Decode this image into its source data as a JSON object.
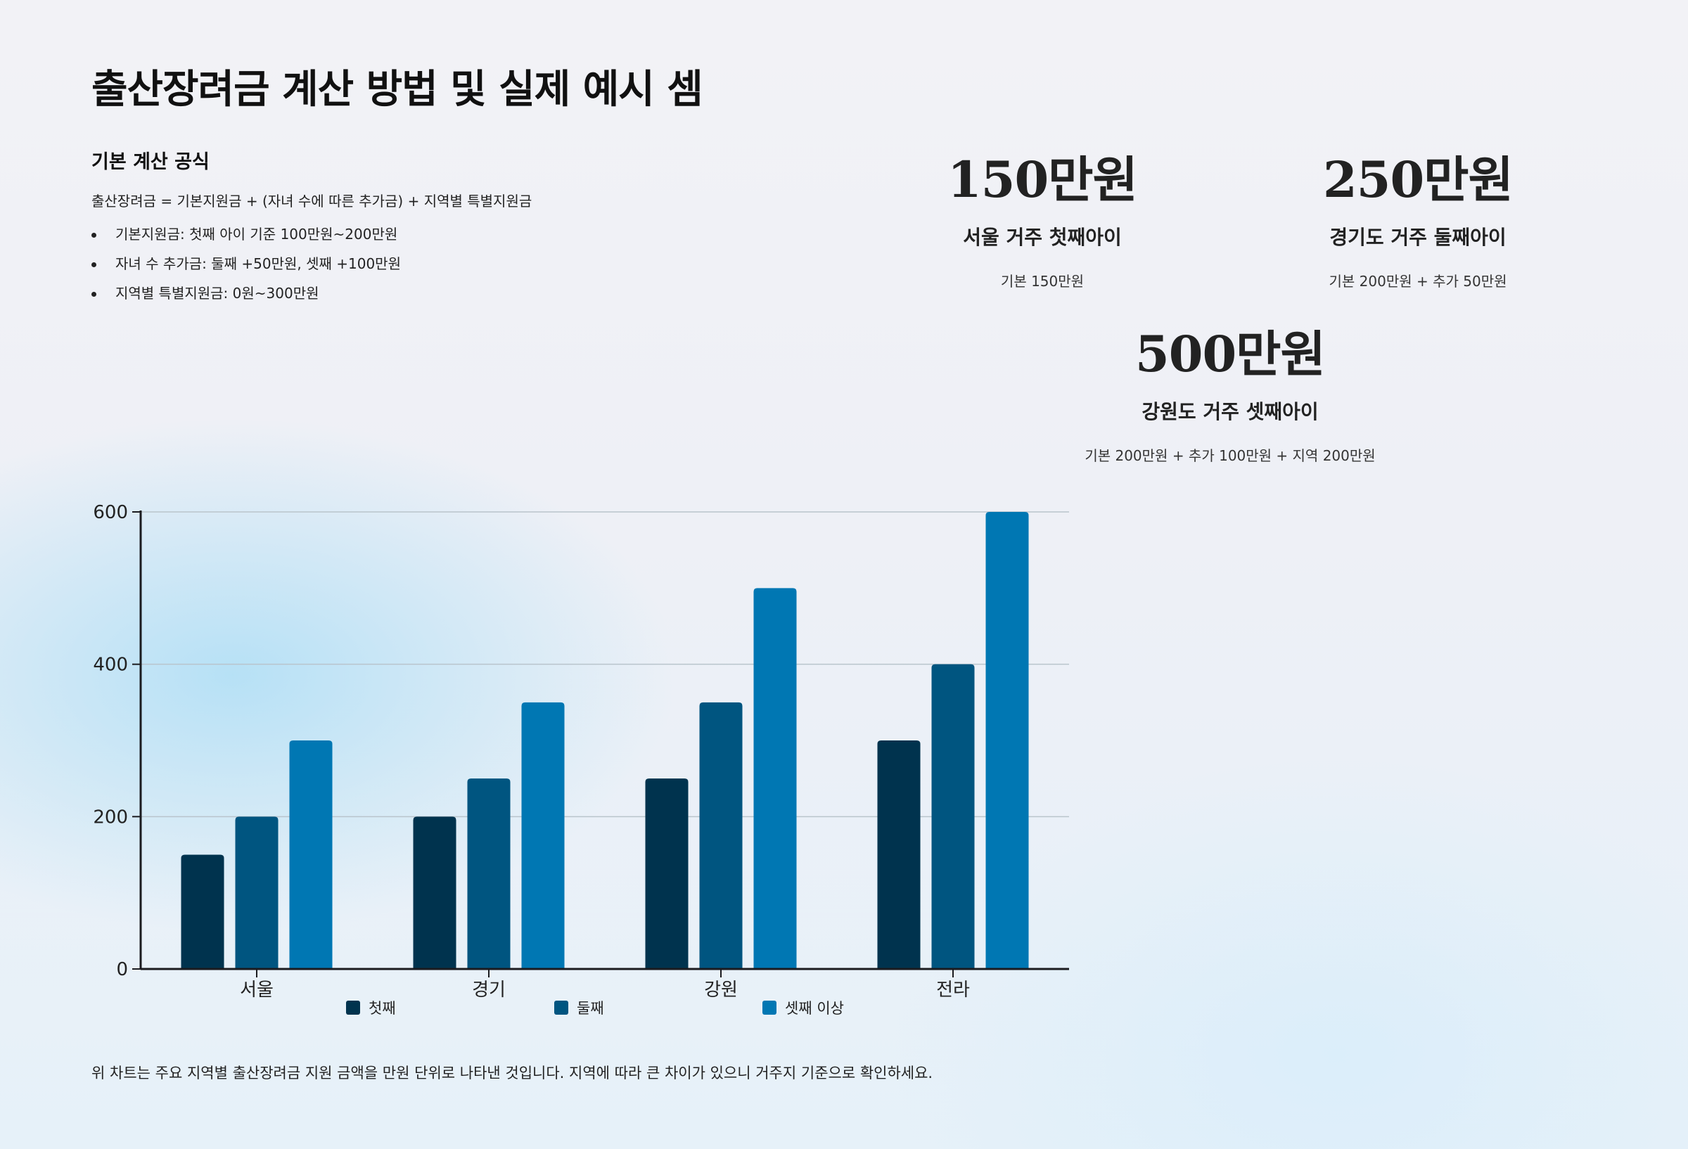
{
  "title": "출산장려금 계산 방법 및 실제 예시 셈",
  "formula": {
    "heading": "기본 계산 공식",
    "text": "출산장려금 = 기본지원금 + (자녀 수에 따른 추가금) + 지역별 특별지원금",
    "items": [
      "기본지원금: 첫째 아이 기준 100만원~200만원",
      "자녀 수 추가금: 둘째 +50만원, 셋째 +100만원",
      "지역별 특별지원금: 0원~300만원"
    ]
  },
  "examples": [
    {
      "amount": "150만원",
      "label": "서울 거주 첫째아이",
      "detail": "기본 150만원"
    },
    {
      "amount": "250만원",
      "label": "경기도 거주 둘째아이",
      "detail": "기본 200만원 + 추가 50만원"
    },
    {
      "amount": "500만원",
      "label": "강원도 거주 셋째아이",
      "detail": "기본 200만원 + 추가 100만원 + 지역 200만원"
    }
  ],
  "chart_data": {
    "type": "bar",
    "categories": [
      "서울",
      "경기",
      "강원",
      "전라"
    ],
    "series": [
      {
        "name": "첫째",
        "color": "#00334e",
        "values": [
          150,
          200,
          250,
          300
        ]
      },
      {
        "name": "둘째",
        "color": "#005580",
        "values": [
          200,
          250,
          350,
          400
        ]
      },
      {
        "name": "셋째 이상",
        "color": "#0077b3",
        "values": [
          300,
          350,
          500,
          600
        ]
      }
    ],
    "yticks": [
      0,
      200,
      400,
      600
    ],
    "ylim": [
      0,
      600
    ],
    "grid": true,
    "legend": "bottom"
  },
  "footnote": "위 차트는 주요 지역별 출산장려금 지원 금액을 만원 단위로 나타낸 것입니다. 지역에 따라 큰 차이가 있으니 거주지 기준으로 확인하세요."
}
